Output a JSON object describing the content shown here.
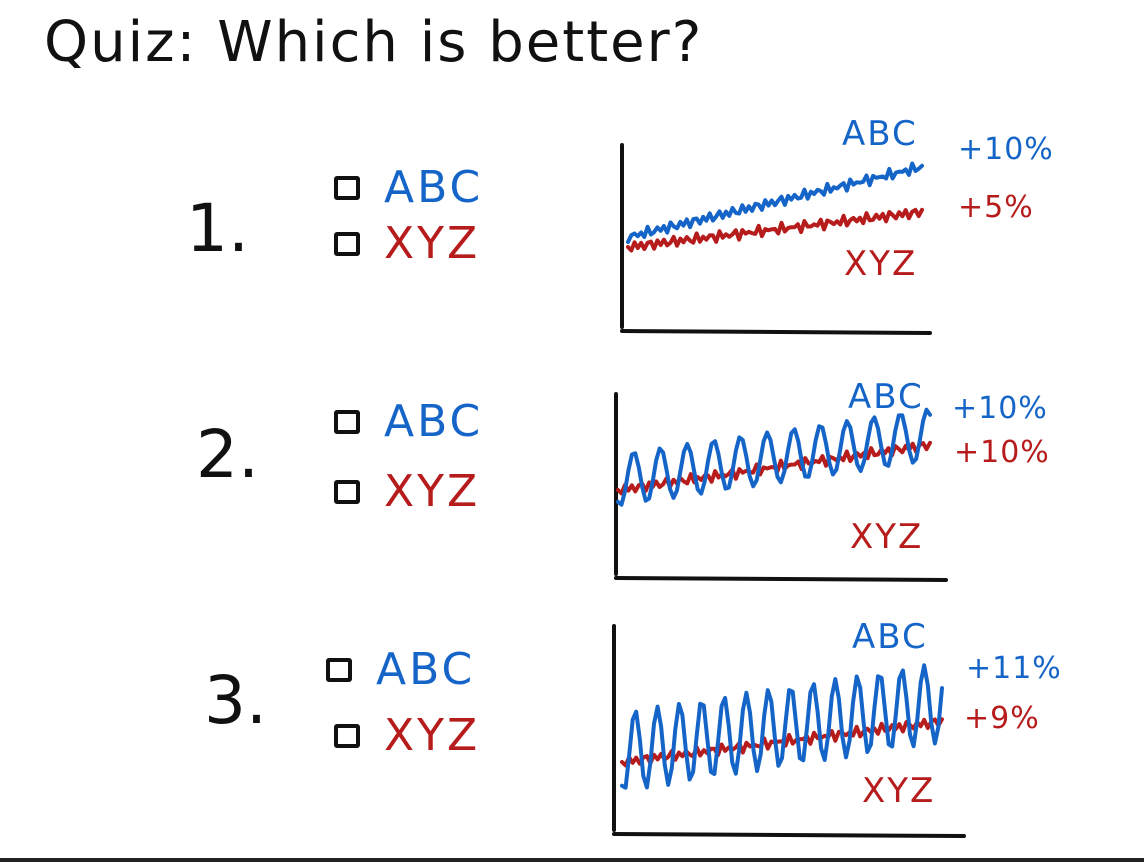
{
  "title": "Quiz: Which is better?",
  "colors": {
    "abc": "#1565c8",
    "xyz": "#b71c1c",
    "ink": "#111111"
  },
  "questions": [
    {
      "number": "1.",
      "options": [
        "ABC",
        "XYZ"
      ]
    },
    {
      "number": "2.",
      "options": [
        "ABC",
        "XYZ"
      ]
    },
    {
      "number": "3.",
      "options": [
        "ABC",
        "XYZ"
      ]
    }
  ],
  "chart_data": [
    {
      "type": "line",
      "series": [
        {
          "name": "ABC",
          "change": "+10%",
          "trend": [
            0.0,
            0.1
          ],
          "noise": "low"
        },
        {
          "name": "XYZ",
          "change": "+5%",
          "trend": [
            0.0,
            0.05
          ],
          "noise": "low"
        }
      ],
      "grid": false
    },
    {
      "type": "line",
      "series": [
        {
          "name": "ABC",
          "change": "+10%",
          "trend": [
            0.0,
            0.1
          ],
          "noise": "medium"
        },
        {
          "name": "XYZ",
          "change": "+10%",
          "trend": [
            0.0,
            0.1
          ],
          "noise": "low"
        }
      ],
      "grid": false
    },
    {
      "type": "line",
      "series": [
        {
          "name": "ABC",
          "change": "+11%",
          "trend": [
            0.0,
            0.11
          ],
          "noise": "high"
        },
        {
          "name": "XYZ",
          "change": "+9%",
          "trend": [
            0.0,
            0.09
          ],
          "noise": "low"
        }
      ],
      "grid": false
    }
  ]
}
